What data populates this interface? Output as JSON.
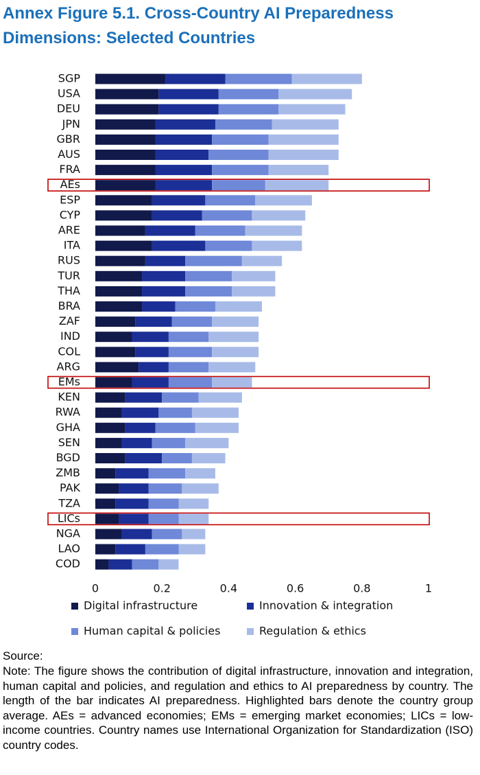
{
  "chart_data": {
    "type": "stacked-barh",
    "title": "Annex Figure 5.1. Cross-Country AI Preparedness Dimensions: Selected Countries",
    "categories": [
      "SGP",
      "USA",
      "DEU",
      "JPN",
      "GBR",
      "AUS",
      "FRA",
      "AEs",
      "ESP",
      "CYP",
      "ARE",
      "ITA",
      "RUS",
      "TUR",
      "THA",
      "BRA",
      "ZAF",
      "IND",
      "COL",
      "ARG",
      "EMs",
      "KEN",
      "RWA",
      "GHA",
      "SEN",
      "BGD",
      "ZMB",
      "PAK",
      "TZA",
      "LICs",
      "NGA",
      "LAO",
      "COD"
    ],
    "highlight": [
      7,
      20,
      29
    ],
    "series": [
      {
        "name": "Digital infrastructure",
        "color": "#111a4a",
        "values": [
          0.21,
          0.19,
          0.19,
          0.18,
          0.18,
          0.18,
          0.18,
          0.18,
          0.17,
          0.17,
          0.15,
          0.17,
          0.15,
          0.14,
          0.14,
          0.14,
          0.12,
          0.11,
          0.12,
          0.13,
          0.11,
          0.09,
          0.08,
          0.09,
          0.08,
          0.09,
          0.06,
          0.07,
          0.06,
          0.07,
          0.08,
          0.06,
          0.04
        ]
      },
      {
        "name": "Innovation & integration",
        "color": "#1c2f96",
        "values": [
          0.18,
          0.18,
          0.18,
          0.18,
          0.17,
          0.16,
          0.17,
          0.17,
          0.16,
          0.15,
          0.15,
          0.16,
          0.12,
          0.13,
          0.13,
          0.1,
          0.11,
          0.11,
          0.1,
          0.09,
          0.11,
          0.11,
          0.11,
          0.09,
          0.09,
          0.11,
          0.1,
          0.09,
          0.1,
          0.09,
          0.09,
          0.09,
          0.07
        ]
      },
      {
        "name": "Human capital & policies",
        "color": "#6f88d8",
        "values": [
          0.2,
          0.18,
          0.18,
          0.17,
          0.17,
          0.18,
          0.17,
          0.16,
          0.15,
          0.15,
          0.15,
          0.14,
          0.17,
          0.14,
          0.14,
          0.12,
          0.12,
          0.12,
          0.13,
          0.12,
          0.13,
          0.11,
          0.1,
          0.12,
          0.1,
          0.09,
          0.11,
          0.1,
          0.09,
          0.09,
          0.09,
          0.1,
          0.08
        ]
      },
      {
        "name": "Regulation & ethics",
        "color": "#a8bbe8",
        "values": [
          0.21,
          0.22,
          0.2,
          0.2,
          0.21,
          0.21,
          0.18,
          0.19,
          0.17,
          0.16,
          0.17,
          0.15,
          0.12,
          0.13,
          0.13,
          0.14,
          0.14,
          0.15,
          0.14,
          0.14,
          0.12,
          0.13,
          0.14,
          0.13,
          0.13,
          0.1,
          0.09,
          0.11,
          0.09,
          0.09,
          0.07,
          0.08,
          0.06
        ]
      }
    ],
    "xlim": [
      0,
      1
    ],
    "xticks": [
      0,
      0.2,
      0.4,
      0.6,
      0.8,
      1
    ],
    "highlight_color": "#c00000"
  },
  "source": "Source:",
  "note": "Note: The figure shows the contribution of digital infrastructure, innovation and integration, human capital and policies, and regulation and ethics to AI preparedness by country. The length of the bar indicates AI preparedness. Highlighted bars denote the country group average. AEs = advanced economies; EMs = emerging market economies; LICs = low-income countries. Country names use International Organization for Standardization (ISO) country codes."
}
